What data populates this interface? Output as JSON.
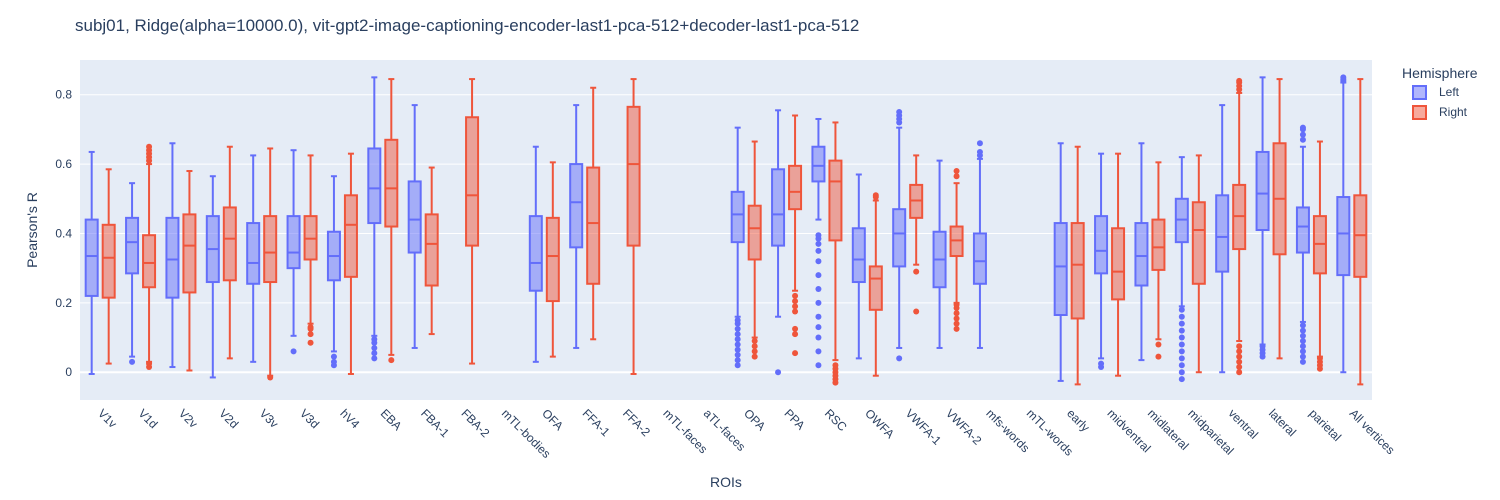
{
  "chart_data": {
    "type": "box",
    "title": "subj01, Ridge(alpha=10000.0), vit-gpt2-image-captioning-encoder-last1-pca-512+decoder-last1-pca-512",
    "xlabel": "ROIs",
    "ylabel": "Pearson's R",
    "ylim": [
      -0.08,
      0.9
    ],
    "yticks": [
      0,
      0.2,
      0.4,
      0.6,
      0.8
    ],
    "ytick_labels": [
      "0",
      "0.2",
      "0.4",
      "0.6",
      "0.8"
    ],
    "grid": true,
    "legend": {
      "title": "Hemisphere",
      "position": "top-right"
    },
    "categories": [
      "V1v",
      "V1d",
      "V2v",
      "V2d",
      "V3v",
      "V3d",
      "hV4",
      "EBA",
      "FBA-1",
      "FBA-2",
      "mTL-bodies",
      "OFA",
      "FFA-1",
      "FFA-2",
      "mTL-faces",
      "aTL-faces",
      "OPA",
      "PPA",
      "RSC",
      "OWFA",
      "VWFA-1",
      "VWFA-2",
      "mfs-words",
      "mTL-words",
      "early",
      "midventral",
      "midlateral",
      "midparietal",
      "ventral",
      "lateral",
      "parietal",
      "All vertices"
    ],
    "series": [
      {
        "name": "Left",
        "color": "#636efa",
        "fill": "rgba(99,110,250,0.5)",
        "boxes": [
          {
            "category": "V1v",
            "lf": -0.005,
            "q1": 0.22,
            "median": 0.335,
            "q3": 0.44,
            "uf": 0.635,
            "outliers": []
          },
          {
            "category": "V1d",
            "lf": 0.045,
            "q1": 0.285,
            "median": 0.375,
            "q3": 0.445,
            "uf": 0.545,
            "outliers": [
              0.03
            ]
          },
          {
            "category": "V2v",
            "lf": 0.015,
            "q1": 0.215,
            "median": 0.325,
            "q3": 0.445,
            "uf": 0.66,
            "outliers": []
          },
          {
            "category": "V2d",
            "lf": -0.015,
            "q1": 0.26,
            "median": 0.355,
            "q3": 0.45,
            "uf": 0.565,
            "outliers": []
          },
          {
            "category": "V3v",
            "lf": 0.03,
            "q1": 0.255,
            "median": 0.315,
            "q3": 0.43,
            "uf": 0.625,
            "outliers": []
          },
          {
            "category": "V3d",
            "lf": 0.105,
            "q1": 0.3,
            "median": 0.345,
            "q3": 0.45,
            "uf": 0.64,
            "outliers": [
              0.06
            ]
          },
          {
            "category": "hV4",
            "lf": 0.06,
            "q1": 0.265,
            "median": 0.335,
            "q3": 0.405,
            "uf": 0.565,
            "outliers": [
              0.02,
              0.03,
              0.045
            ]
          },
          {
            "category": "EBA",
            "lf": 0.105,
            "q1": 0.43,
            "median": 0.53,
            "q3": 0.645,
            "uf": 0.85,
            "outliers": [
              0.04,
              0.055,
              0.07,
              0.085,
              0.095
            ]
          },
          {
            "category": "FBA-1",
            "lf": 0.07,
            "q1": 0.345,
            "median": 0.44,
            "q3": 0.55,
            "uf": 0.77,
            "outliers": []
          },
          {
            "category": "OFA",
            "lf": 0.03,
            "q1": 0.235,
            "median": 0.315,
            "q3": 0.45,
            "uf": 0.65,
            "outliers": []
          },
          {
            "category": "FFA-1",
            "lf": 0.07,
            "q1": 0.36,
            "median": 0.49,
            "q3": 0.6,
            "uf": 0.77,
            "outliers": []
          },
          {
            "category": "OPA",
            "lf": 0.16,
            "q1": 0.375,
            "median": 0.455,
            "q3": 0.52,
            "uf": 0.705,
            "outliers": [
              0.02,
              0.035,
              0.05,
              0.065,
              0.08,
              0.095,
              0.11,
              0.125,
              0.14,
              0.15
            ]
          },
          {
            "category": "PPA",
            "lf": 0.16,
            "q1": 0.365,
            "median": 0.455,
            "q3": 0.585,
            "uf": 0.755,
            "outliers": [
              0.0
            ]
          },
          {
            "category": "RSC",
            "lf": 0.44,
            "q1": 0.55,
            "median": 0.595,
            "q3": 0.65,
            "uf": 0.73,
            "outliers": [
              0.02,
              0.06,
              0.1,
              0.13,
              0.16,
              0.2,
              0.24,
              0.28,
              0.32,
              0.35,
              0.37,
              0.385,
              0.395
            ]
          },
          {
            "category": "OWFA",
            "lf": 0.04,
            "q1": 0.26,
            "median": 0.325,
            "q3": 0.415,
            "uf": 0.57,
            "outliers": []
          },
          {
            "category": "VWFA-1",
            "lf": 0.07,
            "q1": 0.305,
            "median": 0.4,
            "q3": 0.47,
            "uf": 0.705,
            "outliers": [
              0.04,
              0.72,
              0.73,
              0.74,
              0.75
            ]
          },
          {
            "category": "VWFA-2",
            "lf": 0.07,
            "q1": 0.245,
            "median": 0.325,
            "q3": 0.405,
            "uf": 0.61,
            "outliers": []
          },
          {
            "category": "mfs-words",
            "lf": 0.07,
            "q1": 0.255,
            "median": 0.32,
            "q3": 0.4,
            "uf": 0.615,
            "outliers": [
              0.625,
              0.635,
              0.66
            ]
          },
          {
            "category": "early",
            "lf": -0.025,
            "q1": 0.165,
            "median": 0.305,
            "q3": 0.43,
            "uf": 0.66,
            "outliers": []
          },
          {
            "category": "midventral",
            "lf": 0.04,
            "q1": 0.285,
            "median": 0.35,
            "q3": 0.45,
            "uf": 0.63,
            "outliers": [
              0.015,
              0.025
            ]
          },
          {
            "category": "midlateral",
            "lf": 0.035,
            "q1": 0.25,
            "median": 0.335,
            "q3": 0.43,
            "uf": 0.66,
            "outliers": []
          },
          {
            "category": "midparietal",
            "lf": 0.19,
            "q1": 0.375,
            "median": 0.44,
            "q3": 0.5,
            "uf": 0.62,
            "outliers": [
              -0.02,
              0.0,
              0.02,
              0.04,
              0.06,
              0.08,
              0.1,
              0.12,
              0.14,
              0.16,
              0.18
            ]
          },
          {
            "category": "ventral",
            "lf": 0.0,
            "q1": 0.29,
            "median": 0.39,
            "q3": 0.51,
            "uf": 0.77,
            "outliers": []
          },
          {
            "category": "lateral",
            "lf": 0.08,
            "q1": 0.41,
            "median": 0.515,
            "q3": 0.635,
            "uf": 0.85,
            "outliers": [
              0.045,
              0.055,
              0.065,
              0.075
            ]
          },
          {
            "category": "parietal",
            "lf": 0.145,
            "q1": 0.345,
            "median": 0.42,
            "q3": 0.475,
            "uf": 0.65,
            "outliers": [
              0.03,
              0.045,
              0.06,
              0.075,
              0.09,
              0.105,
              0.12,
              0.135,
              0.67,
              0.685,
              0.7,
              0.705
            ]
          },
          {
            "category": "All vertices",
            "lf": 0.0,
            "q1": 0.28,
            "median": 0.4,
            "q3": 0.505,
            "uf": 0.835,
            "outliers": [
              0.84,
              0.845,
              0.85
            ]
          }
        ]
      },
      {
        "name": "Right",
        "color": "#ef553b",
        "fill": "rgba(239,85,59,0.5)",
        "boxes": [
          {
            "category": "V1v",
            "lf": 0.025,
            "q1": 0.215,
            "median": 0.33,
            "q3": 0.425,
            "uf": 0.585,
            "outliers": []
          },
          {
            "category": "V1d",
            "lf": 0.03,
            "q1": 0.245,
            "median": 0.315,
            "q3": 0.395,
            "uf": 0.6,
            "outliers": [
              0.015,
              0.025,
              0.61,
              0.62,
              0.63,
              0.64,
              0.65
            ]
          },
          {
            "category": "V2v",
            "lf": 0.005,
            "q1": 0.23,
            "median": 0.365,
            "q3": 0.455,
            "uf": 0.58,
            "outliers": []
          },
          {
            "category": "V2d",
            "lf": 0.04,
            "q1": 0.265,
            "median": 0.385,
            "q3": 0.475,
            "uf": 0.65,
            "outliers": []
          },
          {
            "category": "V3v",
            "lf": -0.01,
            "q1": 0.26,
            "median": 0.345,
            "q3": 0.45,
            "uf": 0.645,
            "outliers": [
              -0.015
            ]
          },
          {
            "category": "V3d",
            "lf": 0.14,
            "q1": 0.325,
            "median": 0.385,
            "q3": 0.45,
            "uf": 0.625,
            "outliers": [
              0.085,
              0.11,
              0.125,
              0.13
            ]
          },
          {
            "category": "hV4",
            "lf": -0.005,
            "q1": 0.275,
            "median": 0.425,
            "q3": 0.51,
            "uf": 0.63,
            "outliers": []
          },
          {
            "category": "EBA",
            "lf": 0.05,
            "q1": 0.42,
            "median": 0.53,
            "q3": 0.67,
            "uf": 0.845,
            "outliers": [
              0.035
            ]
          },
          {
            "category": "FBA-1",
            "lf": 0.11,
            "q1": 0.25,
            "median": 0.37,
            "q3": 0.455,
            "uf": 0.59,
            "outliers": []
          },
          {
            "category": "FBA-2",
            "lf": 0.025,
            "q1": 0.365,
            "median": 0.51,
            "q3": 0.735,
            "uf": 0.845,
            "outliers": []
          },
          {
            "category": "OFA",
            "lf": 0.045,
            "q1": 0.205,
            "median": 0.335,
            "q3": 0.445,
            "uf": 0.605,
            "outliers": []
          },
          {
            "category": "FFA-1",
            "lf": 0.095,
            "q1": 0.255,
            "median": 0.43,
            "q3": 0.59,
            "uf": 0.82,
            "outliers": []
          },
          {
            "category": "FFA-2",
            "lf": -0.005,
            "q1": 0.365,
            "median": 0.6,
            "q3": 0.765,
            "uf": 0.845,
            "outliers": []
          },
          {
            "category": "OPA",
            "lf": 0.1,
            "q1": 0.325,
            "median": 0.415,
            "q3": 0.48,
            "uf": 0.665,
            "outliers": [
              0.045,
              0.06,
              0.075,
              0.09
            ]
          },
          {
            "category": "PPA",
            "lf": 0.235,
            "q1": 0.47,
            "median": 0.52,
            "q3": 0.595,
            "uf": 0.74,
            "outliers": [
              0.055,
              0.11,
              0.125,
              0.175,
              0.19,
              0.205,
              0.22
            ]
          },
          {
            "category": "RSC",
            "lf": 0.035,
            "q1": 0.38,
            "median": 0.55,
            "q3": 0.61,
            "uf": 0.72,
            "outliers": [
              -0.03,
              -0.02,
              -0.01,
              0.0,
              0.01,
              0.02
            ]
          },
          {
            "category": "OWFA",
            "lf": -0.01,
            "q1": 0.18,
            "median": 0.27,
            "q3": 0.305,
            "uf": 0.495,
            "outliers": [
              0.505,
              0.51
            ]
          },
          {
            "category": "VWFA-1",
            "lf": 0.31,
            "q1": 0.445,
            "median": 0.495,
            "q3": 0.54,
            "uf": 0.625,
            "outliers": [
              0.175,
              0.29
            ]
          },
          {
            "category": "VWFA-2",
            "lf": 0.2,
            "q1": 0.335,
            "median": 0.38,
            "q3": 0.42,
            "uf": 0.545,
            "outliers": [
              0.125,
              0.14,
              0.155,
              0.17,
              0.185,
              0.195,
              0.565,
              0.58
            ]
          },
          {
            "category": "early",
            "lf": -0.035,
            "q1": 0.155,
            "median": 0.31,
            "q3": 0.43,
            "uf": 0.65,
            "outliers": []
          },
          {
            "category": "midventral",
            "lf": -0.01,
            "q1": 0.21,
            "median": 0.29,
            "q3": 0.415,
            "uf": 0.63,
            "outliers": []
          },
          {
            "category": "midlateral",
            "lf": 0.095,
            "q1": 0.295,
            "median": 0.36,
            "q3": 0.44,
            "uf": 0.605,
            "outliers": [
              0.045,
              0.08
            ]
          },
          {
            "category": "midparietal",
            "lf": 0.0,
            "q1": 0.255,
            "median": 0.41,
            "q3": 0.49,
            "uf": 0.625,
            "outliers": []
          },
          {
            "category": "ventral",
            "lf": 0.09,
            "q1": 0.355,
            "median": 0.45,
            "q3": 0.54,
            "uf": 0.805,
            "outliers": [
              0.0,
              0.015,
              0.03,
              0.045,
              0.06,
              0.075,
              0.815,
              0.825,
              0.835,
              0.84
            ]
          },
          {
            "category": "lateral",
            "lf": 0.04,
            "q1": 0.34,
            "median": 0.5,
            "q3": 0.66,
            "uf": 0.845,
            "outliers": []
          },
          {
            "category": "parietal",
            "lf": 0.045,
            "q1": 0.285,
            "median": 0.37,
            "q3": 0.45,
            "uf": 0.665,
            "outliers": [
              0.01,
              0.02,
              0.03,
              0.04
            ]
          },
          {
            "category": "All vertices",
            "lf": -0.035,
            "q1": 0.275,
            "median": 0.395,
            "q3": 0.51,
            "uf": 0.845,
            "outliers": []
          }
        ]
      }
    ]
  }
}
